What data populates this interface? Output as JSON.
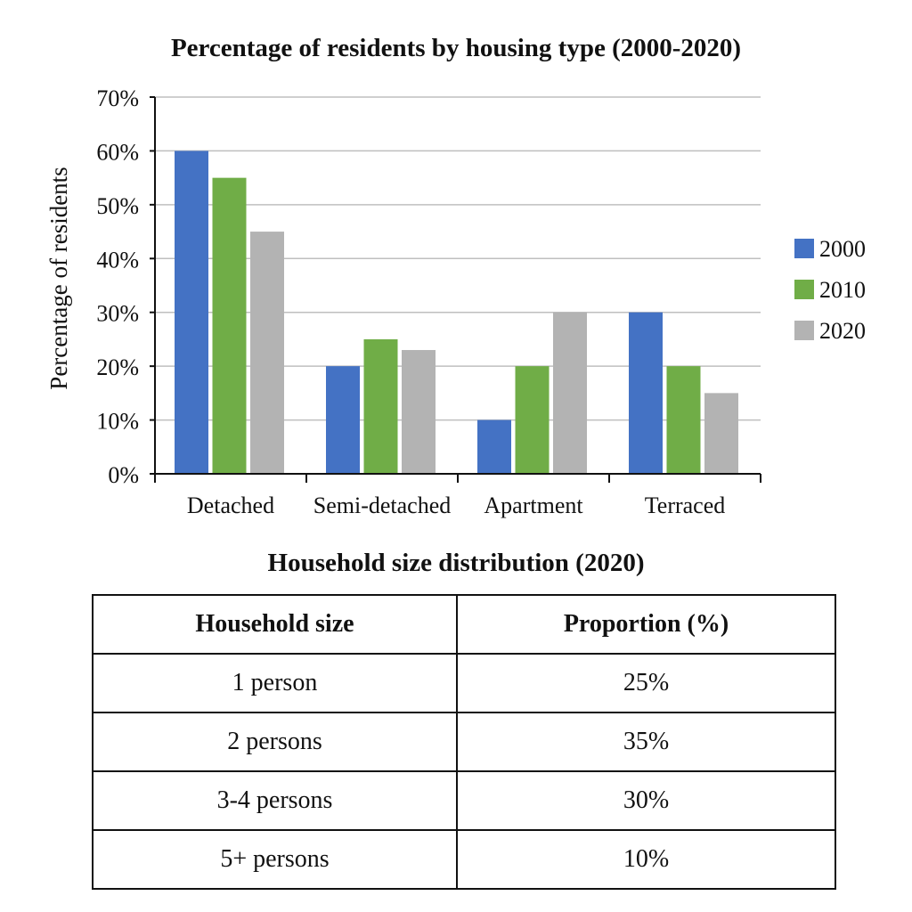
{
  "chart_data": {
    "type": "bar",
    "title": "Percentage of residents by housing type (2000-2020)",
    "ylabel": "Percentage of residents",
    "xlabel": "",
    "categories": [
      "Detached",
      "Semi-detached",
      "Apartment",
      "Terraced"
    ],
    "series": [
      {
        "name": "2000",
        "values": [
          60,
          20,
          10,
          30
        ],
        "color": "#4472c4"
      },
      {
        "name": "2010",
        "values": [
          55,
          25,
          20,
          20
        ],
        "color": "#70ad47"
      },
      {
        "name": "2020",
        "values": [
          45,
          23,
          30,
          15
        ],
        "color": "#b3b3b3"
      }
    ],
    "ylim": [
      0,
      70
    ],
    "yticks": [
      "0%",
      "10%",
      "20%",
      "30%",
      "40%",
      "50%",
      "60%",
      "70%"
    ],
    "grid": true,
    "legend": "right"
  },
  "table": {
    "title": "Household size distribution (2020)",
    "headers": [
      "Household size",
      "Proportion (%)"
    ],
    "rows": [
      [
        "1 person",
        "25%"
      ],
      [
        "2 persons",
        "35%"
      ],
      [
        "3-4 persons",
        "30%"
      ],
      [
        "5+ persons",
        "10%"
      ]
    ]
  }
}
